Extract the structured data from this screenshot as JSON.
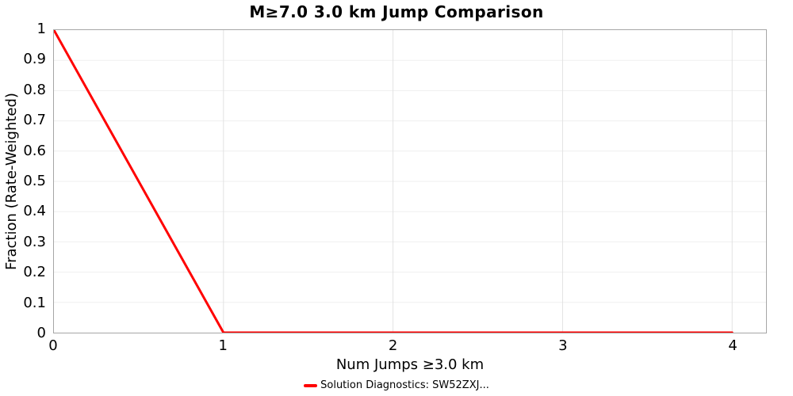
{
  "figure": {
    "title": "M≥7.0 3.0 km Jump Comparison"
  },
  "chart_data": {
    "type": "line",
    "title": "M≥7.0 3.0 km Jump Comparison",
    "xlabel": "Num Jumps ≥3.0 km",
    "ylabel": "Fraction (Rate-Weighted)",
    "xlim": [
      0,
      4.2
    ],
    "ylim": [
      0,
      1
    ],
    "x_ticks": [
      0,
      1,
      2,
      3,
      4
    ],
    "x_tick_labels": [
      "0",
      "1",
      "2",
      "3",
      "4"
    ],
    "y_ticks": [
      0,
      0.1,
      0.2,
      0.3,
      0.4,
      0.5,
      0.6,
      0.7,
      0.8,
      0.9,
      1
    ],
    "y_tick_labels": [
      "0",
      "0.1",
      "0.2",
      "0.3",
      "0.4",
      "0.5",
      "0.6",
      "0.7",
      "0.8",
      "0.9",
      "1"
    ],
    "grid": true,
    "legend_position": "bottom",
    "series": [
      {
        "name": "Solution Diagnostics: SW52ZXJ...",
        "color": "#ff0000",
        "line_width": 3,
        "x": [
          0,
          1,
          2,
          3,
          4
        ],
        "y": [
          1,
          0,
          0,
          0,
          0
        ]
      }
    ]
  },
  "colors": {
    "background": "#ffffff",
    "text": "#000000",
    "plot_border": "#a6a6a6",
    "grid_horizontal": "#efefef",
    "grid_vertical": "#e2e2e2",
    "series_red": "#ff0000"
  }
}
